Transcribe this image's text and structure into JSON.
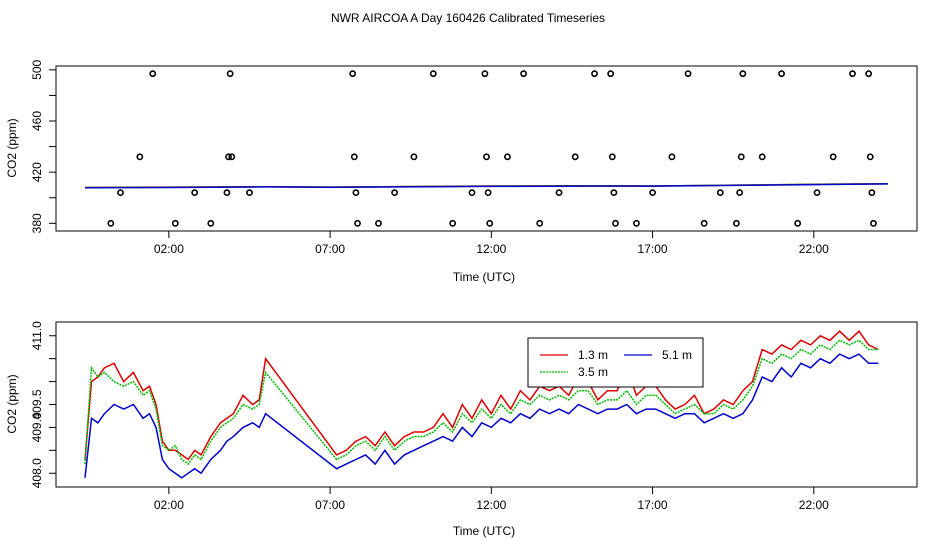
{
  "chart_data": [
    {
      "type": "line",
      "title": "NWR AIRCOA A  Day 160426  Calibrated Timeseries",
      "xlabel": "Time (UTC)",
      "ylabel": "CO2 (ppm)",
      "xlim": [
        -1.5,
        25.2
      ],
      "ylim": [
        374,
        503
      ],
      "x_ticks": [
        2,
        7,
        12,
        17,
        22
      ],
      "x_tick_labels": [
        "02:00",
        "07:00",
        "12:00",
        "17:00",
        "22:00"
      ],
      "y_ticks": [
        380,
        400,
        420,
        440,
        460,
        480,
        500
      ],
      "y_tick_labels": [
        "380",
        "",
        "420",
        "",
        "460",
        "",
        "500"
      ],
      "series": [
        {
          "name": "1.3 m",
          "color": "#dd0000",
          "x": [
            -0.6,
            2,
            5,
            7,
            10,
            12,
            15,
            17,
            20,
            22,
            24.3
          ],
          "y": [
            408,
            408.3,
            408.6,
            408.3,
            408.9,
            409.2,
            409.4,
            409.2,
            410,
            410.6,
            411
          ]
        },
        {
          "name": "3.5 m",
          "color": "#00bb00",
          "x": [
            -0.6,
            2,
            5,
            7,
            10,
            12,
            15,
            17,
            20,
            22,
            24.3
          ],
          "y": [
            408,
            408.2,
            408.6,
            408.3,
            408.8,
            409.1,
            409.3,
            409.2,
            410,
            410.5,
            410.9
          ]
        },
        {
          "name": "5.1 m",
          "color": "#0000cc",
          "x": [
            -0.6,
            2,
            5,
            7,
            10,
            12,
            15,
            17,
            20,
            22,
            24.3
          ],
          "y": [
            407.8,
            408,
            408.5,
            408.2,
            408.6,
            408.9,
            409.1,
            409.1,
            409.8,
            410.3,
            410.8
          ]
        }
      ],
      "outliers": {
        "x": [
          0.2,
          0.5,
          1.1,
          1.5,
          2.2,
          2.8,
          3.3,
          3.8,
          3.85,
          3.9,
          3.95,
          4.5,
          7.7,
          7.75,
          7.8,
          7.85,
          8.5,
          9.0,
          9.6,
          10.2,
          10.8,
          11.4,
          11.8,
          11.85,
          11.9,
          11.95,
          12.5,
          13.0,
          13.5,
          14.1,
          14.6,
          15.2,
          15.7,
          15.75,
          15.8,
          15.85,
          16.5,
          17.0,
          17.6,
          18.1,
          18.6,
          19.1,
          19.6,
          19.7,
          19.75,
          19.8,
          20.4,
          21.0,
          21.5,
          22.1,
          22.6,
          23.2,
          23.7,
          23.75,
          23.8,
          23.85
        ],
        "y": [
          380,
          404,
          432,
          497,
          380,
          404,
          380,
          404,
          432,
          497,
          432,
          404,
          497,
          432,
          404,
          380,
          380,
          404,
          432,
          497,
          380,
          404,
          497,
          432,
          404,
          380,
          432,
          497,
          380,
          404,
          432,
          497,
          497,
          432,
          404,
          380,
          380,
          404,
          432,
          497,
          380,
          404,
          380,
          404,
          432,
          497,
          432,
          497,
          380,
          404,
          432,
          497,
          497,
          432,
          404,
          380
        ]
      }
    },
    {
      "type": "line",
      "xlabel": "Time (UTC)",
      "ylabel": "CO2 (ppm)",
      "xlim": [
        -1.5,
        25.2
      ],
      "ylim": [
        407.7,
        411.3
      ],
      "x_ticks": [
        2,
        7,
        12,
        17,
        22
      ],
      "x_tick_labels": [
        "02:00",
        "07:00",
        "12:00",
        "17:00",
        "22:00"
      ],
      "y_ticks": [
        408.0,
        408.5,
        409.0,
        409.5,
        410.0,
        410.5,
        411.0
      ],
      "y_tick_labels": [
        "408.0",
        "",
        "409.0",
        "409.5",
        "",
        "",
        "411.0"
      ],
      "legend": {
        "position": "top-center"
      },
      "series": [
        {
          "name": "1.3 m",
          "color": "#dd0000",
          "x": [
            -0.6,
            -0.4,
            -0.2,
            0,
            0.3,
            0.6,
            0.9,
            1.2,
            1.4,
            1.6,
            1.8,
            2.0,
            2.2,
            2.4,
            2.6,
            2.8,
            3.0,
            3.3,
            3.6,
            3.8,
            4.0,
            4.3,
            4.6,
            4.8,
            5.0,
            7.2,
            7.5,
            7.8,
            8.1,
            8.4,
            8.7,
            9.0,
            9.3,
            9.6,
            9.9,
            10.2,
            10.5,
            10.8,
            11.1,
            11.4,
            11.7,
            12.0,
            12.3,
            12.6,
            12.9,
            13.2,
            13.5,
            13.8,
            14.1,
            14.4,
            14.7,
            15.0,
            15.3,
            15.6,
            15.9,
            16.2,
            16.5,
            16.8,
            17.1,
            17.4,
            17.7,
            18.0,
            18.3,
            18.6,
            18.9,
            19.2,
            19.5,
            19.8,
            20.1,
            20.4,
            20.7,
            21.0,
            21.3,
            21.6,
            21.9,
            22.2,
            22.5,
            22.8,
            23.1,
            23.4,
            23.7,
            24.0
          ],
          "y": [
            408.3,
            410.0,
            410.1,
            410.3,
            410.4,
            410.0,
            410.2,
            409.8,
            409.9,
            409.5,
            408.7,
            408.5,
            408.5,
            408.4,
            408.3,
            408.5,
            408.4,
            408.8,
            409.1,
            409.2,
            409.3,
            409.7,
            409.5,
            409.6,
            410.5,
            408.4,
            408.5,
            408.7,
            408.8,
            408.6,
            408.9,
            408.6,
            408.8,
            408.9,
            408.9,
            409.0,
            409.3,
            409.0,
            409.5,
            409.2,
            409.6,
            409.3,
            409.7,
            409.4,
            409.8,
            409.6,
            409.9,
            409.8,
            409.9,
            409.7,
            410.1,
            410.0,
            409.6,
            409.8,
            409.8,
            410.3,
            409.7,
            409.9,
            409.9,
            409.6,
            409.4,
            409.5,
            409.7,
            409.3,
            409.4,
            409.6,
            409.5,
            409.8,
            410.0,
            410.7,
            410.6,
            410.8,
            410.7,
            410.9,
            410.8,
            411.0,
            410.9,
            411.1,
            410.9,
            411.1,
            410.8,
            410.7
          ]
        },
        {
          "name": "3.5 m",
          "color": "#00bb00",
          "x": [
            -0.6,
            -0.4,
            -0.2,
            0,
            0.3,
            0.6,
            0.9,
            1.2,
            1.4,
            1.6,
            1.8,
            2.0,
            2.2,
            2.4,
            2.6,
            2.8,
            3.0,
            3.3,
            3.6,
            3.8,
            4.0,
            4.3,
            4.6,
            4.8,
            5.0,
            7.2,
            7.5,
            7.8,
            8.1,
            8.4,
            8.7,
            9.0,
            9.3,
            9.6,
            9.9,
            10.2,
            10.5,
            10.8,
            11.1,
            11.4,
            11.7,
            12.0,
            12.3,
            12.6,
            12.9,
            13.2,
            13.5,
            13.8,
            14.1,
            14.4,
            14.7,
            15.0,
            15.3,
            15.6,
            15.9,
            16.2,
            16.5,
            16.8,
            17.1,
            17.4,
            17.7,
            18.0,
            18.3,
            18.6,
            18.9,
            19.2,
            19.5,
            19.8,
            20.1,
            20.4,
            20.7,
            21.0,
            21.3,
            21.6,
            21.9,
            22.2,
            22.5,
            22.8,
            23.1,
            23.4,
            23.7,
            24.0
          ],
          "y": [
            408.2,
            410.3,
            410.1,
            410.2,
            410.0,
            409.9,
            410.0,
            409.7,
            409.8,
            409.4,
            408.6,
            408.5,
            408.6,
            408.3,
            408.2,
            408.4,
            408.3,
            408.7,
            409.0,
            409.1,
            409.2,
            409.5,
            409.4,
            409.5,
            410.2,
            408.3,
            408.4,
            408.6,
            408.7,
            408.5,
            408.8,
            408.5,
            408.7,
            408.8,
            408.8,
            408.9,
            409.1,
            408.9,
            409.3,
            409.1,
            409.4,
            409.2,
            409.5,
            409.3,
            409.6,
            409.5,
            409.7,
            409.6,
            409.7,
            409.6,
            409.8,
            409.8,
            409.5,
            409.6,
            409.6,
            409.8,
            409.5,
            409.7,
            409.7,
            409.5,
            409.3,
            409.4,
            409.5,
            409.3,
            409.3,
            409.5,
            409.4,
            409.6,
            409.9,
            410.5,
            410.4,
            410.6,
            410.5,
            410.7,
            410.6,
            410.8,
            410.7,
            410.9,
            410.8,
            410.9,
            410.7,
            410.7
          ]
        },
        {
          "name": "5.1 m",
          "color": "#0000cc",
          "x": [
            -0.6,
            -0.4,
            -0.2,
            0,
            0.3,
            0.6,
            0.9,
            1.2,
            1.4,
            1.6,
            1.8,
            2.0,
            2.2,
            2.4,
            2.6,
            2.8,
            3.0,
            3.3,
            3.6,
            3.8,
            4.0,
            4.3,
            4.6,
            4.8,
            5.0,
            7.2,
            7.5,
            7.8,
            8.1,
            8.4,
            8.7,
            9.0,
            9.3,
            9.6,
            9.9,
            10.2,
            10.5,
            10.8,
            11.1,
            11.4,
            11.7,
            12.0,
            12.3,
            12.6,
            12.9,
            13.2,
            13.5,
            13.8,
            14.1,
            14.4,
            14.7,
            15.0,
            15.3,
            15.6,
            15.9,
            16.2,
            16.5,
            16.8,
            17.1,
            17.4,
            17.7,
            18.0,
            18.3,
            18.6,
            18.9,
            19.2,
            19.5,
            19.8,
            20.1,
            20.4,
            20.7,
            21.0,
            21.3,
            21.6,
            21.9,
            22.2,
            22.5,
            22.8,
            23.1,
            23.4,
            23.7,
            24.0
          ],
          "y": [
            407.9,
            409.2,
            409.1,
            409.3,
            409.5,
            409.4,
            409.5,
            409.2,
            409.3,
            409.0,
            408.3,
            408.1,
            408.0,
            407.9,
            408.0,
            408.1,
            408.0,
            408.3,
            408.5,
            408.7,
            408.8,
            409.0,
            409.1,
            409.0,
            409.3,
            408.1,
            408.2,
            408.3,
            408.4,
            408.2,
            408.5,
            408.2,
            408.4,
            408.5,
            408.6,
            408.7,
            408.8,
            408.7,
            409.0,
            408.8,
            409.1,
            409.0,
            409.2,
            409.1,
            409.3,
            409.2,
            409.4,
            409.3,
            409.4,
            409.3,
            409.5,
            409.4,
            409.3,
            409.4,
            409.4,
            409.5,
            409.3,
            409.4,
            409.4,
            409.3,
            409.2,
            409.3,
            409.3,
            409.1,
            409.2,
            409.3,
            409.2,
            409.3,
            409.6,
            410.1,
            410.0,
            410.3,
            410.1,
            410.4,
            410.3,
            410.5,
            410.4,
            410.6,
            410.5,
            410.6,
            410.4,
            410.4
          ]
        }
      ]
    }
  ]
}
